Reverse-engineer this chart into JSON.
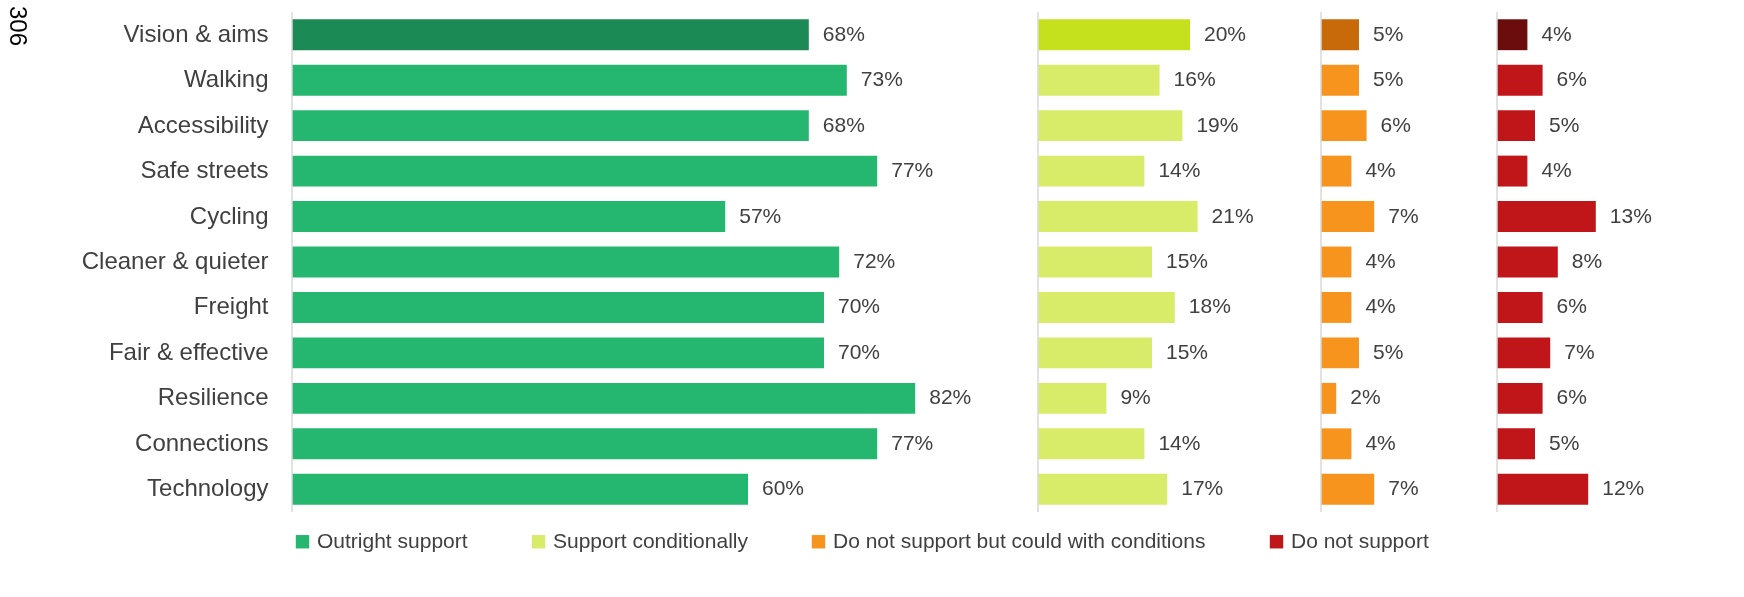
{
  "chart_data": [
    {
      "type": "bar",
      "orientation": "horizontal",
      "legend": "bottom",
      "tick_labels": "y",
      "annotations": [
        "306"
      ],
      "categories": [
        "Vision & aims",
        "Walking",
        "Accessibility",
        "Safe streets",
        "Cycling",
        "Cleaner & quieter",
        "Freight",
        "Fair & effective",
        "Resilience",
        "Connections",
        "Technology"
      ],
      "series": [
        {
          "name": "Outright support",
          "color": "#25b76f",
          "colors": [
            "#1b8a55",
            "#25b76f",
            "#25b76f",
            "#25b76f",
            "#25b76f",
            "#25b76f",
            "#25b76f",
            "#25b76f",
            "#25b76f",
            "#25b76f",
            "#25b76f"
          ],
          "values": [
            68,
            73,
            68,
            77,
            57,
            72,
            70,
            70,
            82,
            77,
            60
          ],
          "value_labels": [
            "68%",
            "73%",
            "68%",
            "77%",
            "57%",
            "72%",
            "70%",
            "70%",
            "82%",
            "77%",
            "60%"
          ]
        }
      ]
    },
    {
      "type": "bar",
      "orientation": "horizontal",
      "legend": "bottom",
      "tick_labels": false,
      "categories": [
        null,
        null,
        null,
        null,
        null,
        null,
        null,
        null,
        null,
        null,
        null
      ],
      "series": [
        {
          "name": "Support conditionally",
          "color": "#d9ec6a",
          "colors": [
            "#c5e01c",
            "#d9ec6a",
            "#d9ec6a",
            "#d9ec6a",
            "#d9ec6a",
            "#d9ec6a",
            "#d9ec6a",
            "#d9ec6a",
            "#d9ec6a",
            "#d9ec6a",
            "#d9ec6a"
          ],
          "values": [
            20,
            16,
            19,
            14,
            21,
            15,
            18,
            15,
            9,
            14,
            17
          ],
          "value_labels": [
            "20%",
            "16%",
            "19%",
            "14%",
            "21%",
            "15%",
            "18%",
            "15%",
            "9%",
            "14%",
            "17%"
          ]
        }
      ]
    },
    {
      "type": "bar",
      "orientation": "horizontal",
      "legend": "bottom",
      "tick_labels": false,
      "categories": [
        null,
        null,
        null,
        null,
        null,
        null,
        null,
        null,
        null,
        null,
        null
      ],
      "series": [
        {
          "name": "Do not support but could with conditions",
          "color": "#f7941d",
          "colors": [
            "#c96a0a",
            "#f7941d",
            "#f7941d",
            "#f7941d",
            "#f7941d",
            "#f7941d",
            "#f7941d",
            "#f7941d",
            "#f7941d",
            "#f7941d",
            "#f7941d"
          ],
          "values": [
            5,
            5,
            6,
            4,
            7,
            4,
            4,
            5,
            2,
            4,
            7
          ],
          "value_labels": [
            "5%",
            "5%",
            "6%",
            "4%",
            "7%",
            "4%",
            "4%",
            "5%",
            "2%",
            "4%",
            "7%"
          ]
        }
      ]
    },
    {
      "type": "bar",
      "orientation": "horizontal",
      "legend": "bottom",
      "tick_labels": false,
      "categories": [
        null,
        null,
        null,
        null,
        null,
        null,
        null,
        null,
        null,
        null,
        null
      ],
      "series": [
        {
          "name": "Do not support",
          "color": "#c0161a",
          "colors": [
            "#6b0d0d",
            "#c0161a",
            "#c0161a",
            "#c0161a",
            "#c0161a",
            "#c0161a",
            "#c0161a",
            "#c0161a",
            "#c0161a",
            "#c0161a",
            "#c0161a"
          ],
          "values": [
            4,
            6,
            5,
            4,
            13,
            8,
            6,
            7,
            6,
            5,
            12
          ],
          "value_labels": [
            "4%",
            "6%",
            "5%",
            "4%",
            "13%",
            "8%",
            "6%",
            "7%",
            "6%",
            "5%",
            "12%"
          ]
        }
      ]
    }
  ]
}
